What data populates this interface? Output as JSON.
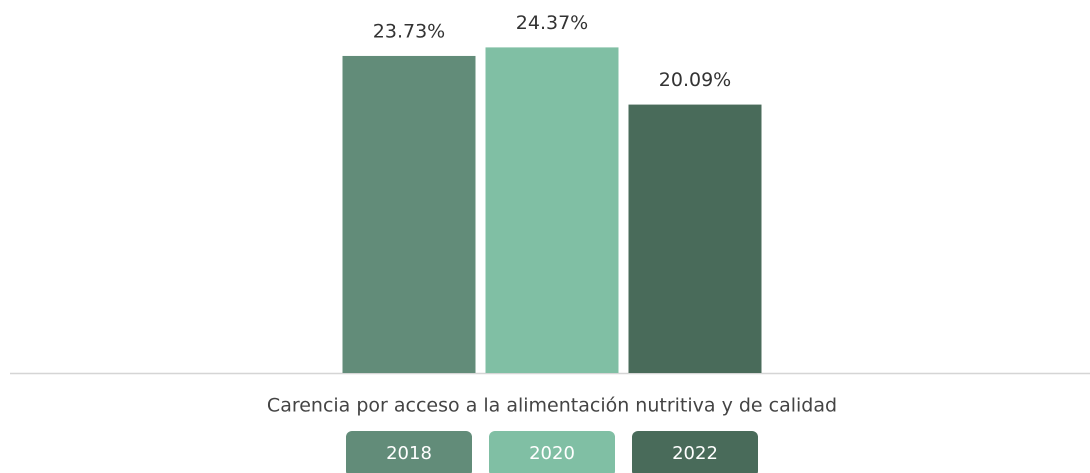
{
  "chart_data": {
    "type": "bar",
    "categories": [
      "Carencia por acceso a la alimentación nutritiva y de calidad"
    ],
    "series": [
      {
        "name": "2018",
        "color": "#628c79",
        "values": [
          23.73
        ],
        "value_labels": [
          "23.73%"
        ]
      },
      {
        "name": "2020",
        "color": "#80bfa4",
        "values": [
          24.37
        ],
        "value_labels": [
          "24.37%"
        ]
      },
      {
        "name": "2022",
        "color": "#496b5a",
        "values": [
          20.09
        ],
        "value_labels": [
          "20.09%"
        ]
      }
    ]
  }
}
